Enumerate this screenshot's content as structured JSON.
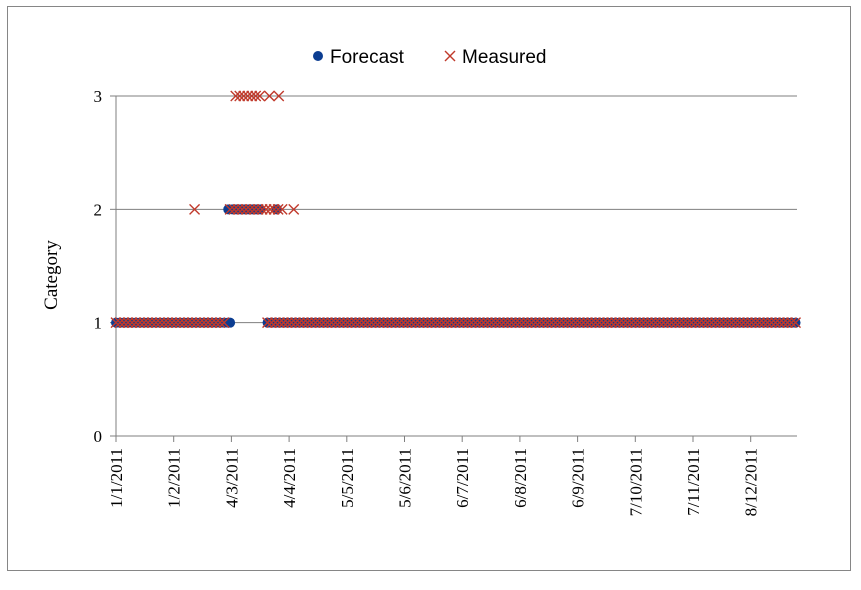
{
  "chart_data": {
    "type": "scatter",
    "ylabel": "Category",
    "xlabel": "",
    "ylim": [
      0,
      3
    ],
    "yticks": [
      "0",
      "1",
      "2",
      "3"
    ],
    "xticks": [
      "1/1/2011",
      "1/2/2011",
      "4/3/2011",
      "4/4/2011",
      "5/5/2011",
      "5/6/2011",
      "6/7/2011",
      "6/8/2011",
      "6/9/2011",
      "7/10/2011",
      "7/11/2011",
      "8/12/2011"
    ],
    "grid": "horizontal",
    "legend_position": "top-center",
    "colors": {
      "forecast": "#0b3d91",
      "measured": "#c0392b"
    },
    "series": [
      {
        "name": "Forecast",
        "marker": "circle",
        "segments": [
          {
            "y": 1,
            "x_from": "1/1/2011",
            "x_to": "3/3/2011"
          },
          {
            "y": 1,
            "x": "3/3/2011"
          },
          {
            "y": 2,
            "x_from": "2/3/2011",
            "x_to": "21/3/2011"
          },
          {
            "y": 2,
            "x": "28/3/2011"
          },
          {
            "y": 1,
            "x_from": "23/3/2011",
            "x_to": "end"
          }
        ]
      },
      {
        "name": "Measured",
        "marker": "x",
        "segments": [
          {
            "y": 1,
            "x_from": "1/1/2011",
            "x_to": "1/3/2011"
          },
          {
            "y": 1,
            "x_from": "23/3/2011",
            "x_to": "end"
          },
          {
            "y": 2,
            "x": "12/2/2011"
          },
          {
            "y": 2,
            "x_from": "3/3/2011",
            "x_to": "31/3/2011"
          },
          {
            "y": 2,
            "x": "6/4/2011"
          },
          {
            "y": 3,
            "x_from": "6/3/2011",
            "x_to": "20/3/2011"
          },
          {
            "y": 3,
            "x": "24/3/2011"
          },
          {
            "y": 3,
            "x": "29/3/2011"
          }
        ]
      }
    ]
  }
}
